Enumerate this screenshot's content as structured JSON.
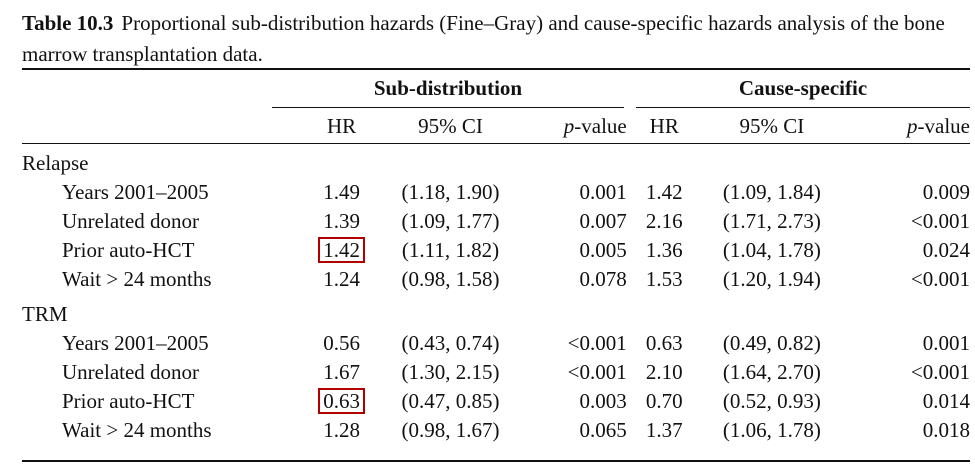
{
  "caption": {
    "label": "Table 10.3",
    "text": "Proportional sub-distribution hazards (Fine–Gray) and cause-specific hazards analysis of the bone marrow transplantation data."
  },
  "groups": {
    "sub_distribution": "Sub-distribution",
    "cause_specific": "Cause-specific"
  },
  "columns": {
    "hr": "HR",
    "ci": "95% CI",
    "p_italic": "p",
    "p_rest": "-value"
  },
  "highlight_color": "#b00000",
  "sections": [
    {
      "title": "Relapse",
      "rows": [
        {
          "label": "Years 2001–2005",
          "sd_hr": "1.49",
          "sd_ci": "(1.18, 1.90)",
          "sd_p": "0.001",
          "cs_hr": "1.42",
          "cs_ci": "(1.09, 1.84)",
          "cs_p": "0.009"
        },
        {
          "label": "Unrelated donor",
          "sd_hr": "1.39",
          "sd_ci": "(1.09, 1.77)",
          "sd_p": "0.007",
          "cs_hr": "2.16",
          "cs_ci": "(1.71, 2.73)",
          "cs_p": "<0.001"
        },
        {
          "label": "Prior auto-HCT",
          "sd_hr": "1.42",
          "sd_ci": "(1.11, 1.82)",
          "sd_p": "0.005",
          "cs_hr": "1.36",
          "cs_ci": "(1.04, 1.78)",
          "cs_p": "0.024",
          "boxed": true
        },
        {
          "label": "Wait > 24 months",
          "sd_hr": "1.24",
          "sd_ci": "(0.98, 1.58)",
          "sd_p": "0.078",
          "cs_hr": "1.53",
          "cs_ci": "(1.20, 1.94)",
          "cs_p": "<0.001"
        }
      ]
    },
    {
      "title": "TRM",
      "rows": [
        {
          "label": "Years 2001–2005",
          "sd_hr": "0.56",
          "sd_ci": "(0.43, 0.74)",
          "sd_p": "<0.001",
          "cs_hr": "0.63",
          "cs_ci": "(0.49, 0.82)",
          "cs_p": "0.001"
        },
        {
          "label": "Unrelated donor",
          "sd_hr": "1.67",
          "sd_ci": "(1.30, 2.15)",
          "sd_p": "<0.001",
          "cs_hr": "2.10",
          "cs_ci": "(1.64, 2.70)",
          "cs_p": "<0.001"
        },
        {
          "label": "Prior auto-HCT",
          "sd_hr": "0.63",
          "sd_ci": "(0.47, 0.85)",
          "sd_p": "0.003",
          "cs_hr": "0.70",
          "cs_ci": "(0.52, 0.93)",
          "cs_p": "0.014",
          "boxed": true
        },
        {
          "label": "Wait > 24 months",
          "sd_hr": "1.28",
          "sd_ci": "(0.98, 1.67)",
          "sd_p": "0.065",
          "cs_hr": "1.37",
          "cs_ci": "(1.06, 1.78)",
          "cs_p": "0.018"
        }
      ]
    }
  ]
}
